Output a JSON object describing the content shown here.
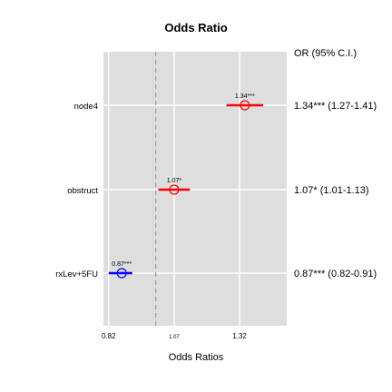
{
  "chart_data": {
    "type": "forest",
    "title": "Odds Ratio",
    "xlabel": "Odds Ratios",
    "table_header": "OR (95% C.I.)",
    "xlim": [
      0.8,
      1.5
    ],
    "xticks": [
      "0.82",
      "1.07",
      "1.32"
    ],
    "reference_line": 1.0,
    "grid": true,
    "colors": {
      "increase": "#ff0000",
      "decrease": "#0000ff",
      "panel": "#dedede",
      "reference": "#9e9e9e"
    },
    "rows": [
      {
        "label": "node4",
        "estimate": 1.34,
        "lower": 1.27,
        "upper": 1.41,
        "point_label": "1.34***",
        "ci_text": "1.34*** (1.27-1.41)",
        "color": "#ff0000"
      },
      {
        "label": "obstruct",
        "estimate": 1.07,
        "lower": 1.01,
        "upper": 1.13,
        "point_label": "1.07*",
        "ci_text": "1.07* (1.01-1.13)",
        "color": "#ff0000"
      },
      {
        "label": "rxLev+5FU",
        "estimate": 0.87,
        "lower": 0.82,
        "upper": 0.91,
        "point_label": "0.87***",
        "ci_text": "0.87*** (0.82-0.91)",
        "color": "#0000ff"
      }
    ]
  }
}
